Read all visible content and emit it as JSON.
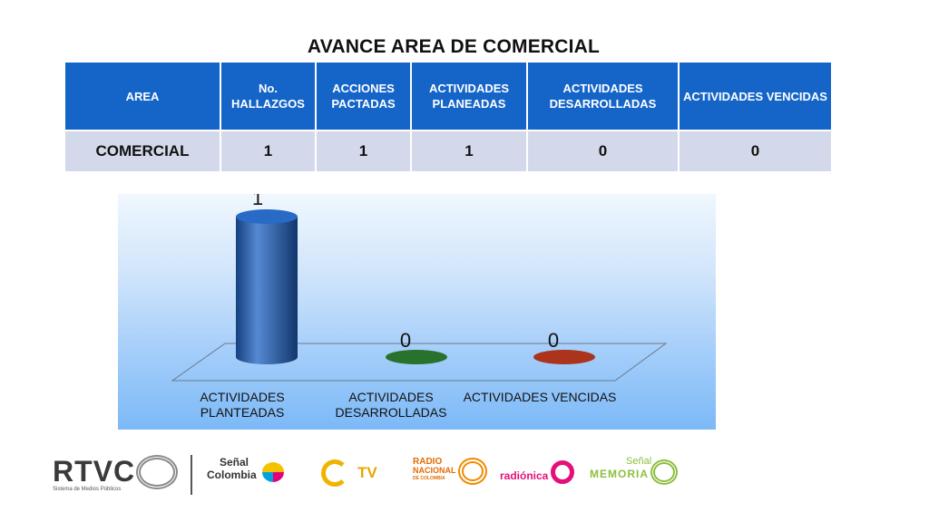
{
  "title": "AVANCE AREA DE COMERCIAL",
  "table": {
    "headers": [
      "AREA",
      "No. HALLAZGOS",
      "ACCIONES PACTADAS",
      "ACTIVIDADES PLANEADAS",
      "ACTIVIDADES DESARROLLADAS",
      "ACTIVIDADES VENCIDAS"
    ],
    "row": [
      "COMERCIAL",
      "1",
      "1",
      "1",
      "0",
      "0"
    ]
  },
  "chart_data": {
    "type": "bar",
    "categories": [
      "ACTIVIDADES PLANTEADAS",
      "ACTIVIDADES DESARROLLADAS",
      "ACTIVIDADES VENCIDAS"
    ],
    "values": [
      1,
      0,
      0
    ],
    "data_labels": [
      "1",
      "0",
      "0"
    ],
    "colors": [
      "#1e62c4",
      "#1d6b22",
      "#a82810"
    ],
    "ylim": [
      0,
      1
    ],
    "style": "3d-cylinder",
    "grid": false,
    "legend": "none"
  },
  "logos": {
    "rtvc": "RTVC",
    "rtvc_sub": "Sistema de Medios Públicos",
    "senal_colombia": [
      "Señal",
      "Colombia"
    ],
    "tv": "TV",
    "radio_nacional": [
      "RADIO",
      "NACIONAL",
      "DE COLOMBIA"
    ],
    "radionica": "radiónica",
    "senal_memoria": [
      "Señal",
      "MEMORIA"
    ]
  }
}
